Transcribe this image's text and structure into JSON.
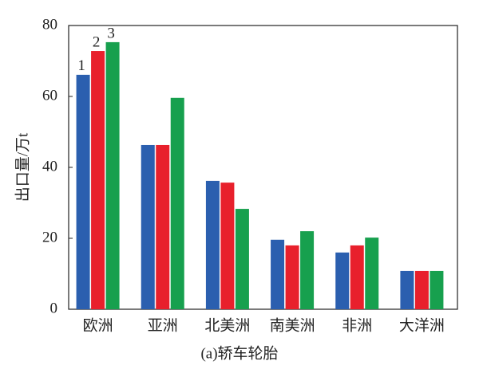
{
  "chart_data": {
    "type": "bar",
    "y_label": "出口量/万t",
    "caption": "(a)轿车轮胎",
    "categories": [
      "欧洲",
      "亚洲",
      "北美洲",
      "南美洲",
      "非洲",
      "大洋洲"
    ],
    "series": [
      {
        "name": "1",
        "color": "#2b5faf",
        "values": [
          66.1,
          46.3,
          36.2,
          19.6,
          16,
          10.8
        ]
      },
      {
        "name": "2",
        "color": "#e8202c",
        "values": [
          72.8,
          46.3,
          35.7,
          18,
          18,
          10.8
        ]
      },
      {
        "name": "3",
        "color": "#17a04e",
        "values": [
          75.3,
          59.6,
          28.3,
          22,
          20.2,
          10.8
        ]
      }
    ],
    "ylim": [
      0,
      80
    ],
    "yticks": [
      0,
      20,
      40,
      60,
      80
    ]
  }
}
